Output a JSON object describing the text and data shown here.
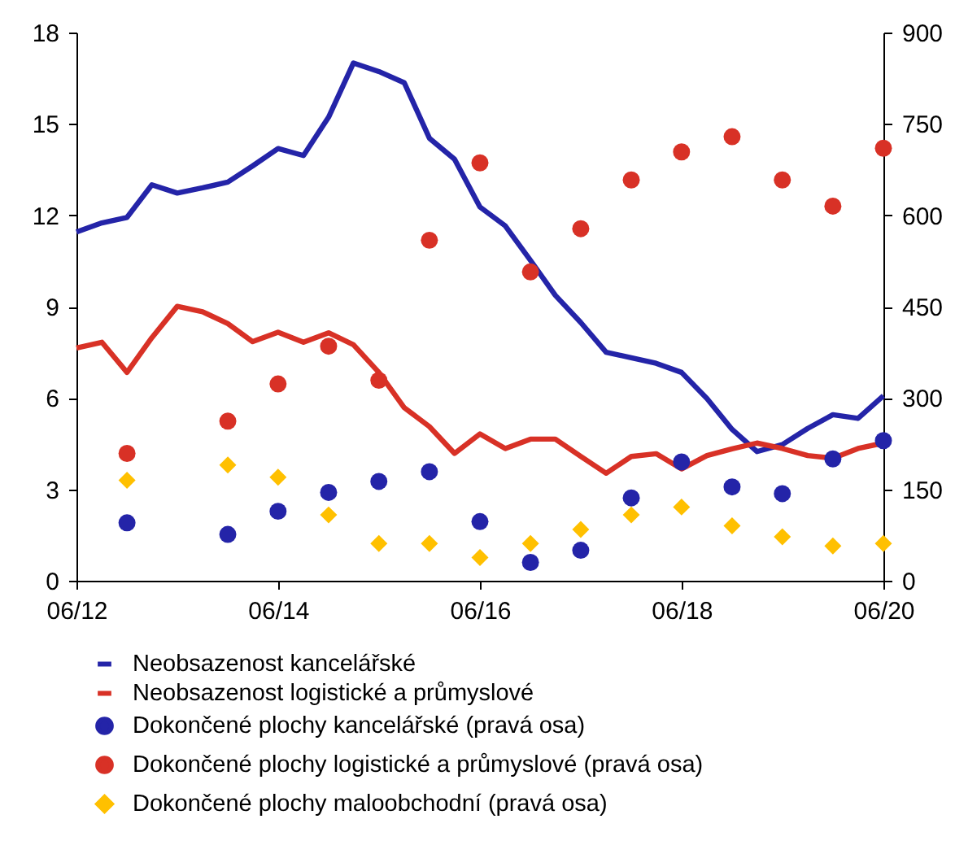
{
  "chart_data": {
    "type": "line",
    "xlim": [
      "2012-06",
      "2020-06"
    ],
    "xticks": [
      {
        "value": "2012-06",
        "label": "06/12"
      },
      {
        "value": "2014-06",
        "label": "06/14"
      },
      {
        "value": "2016-06",
        "label": "06/16"
      },
      {
        "value": "2018-06",
        "label": "06/18"
      },
      {
        "value": "2020-06",
        "label": "06/20"
      }
    ],
    "ylim": [
      0,
      18
    ],
    "yticks": [
      0,
      3,
      6,
      9,
      12,
      15,
      18
    ],
    "y2lim": [
      0,
      900
    ],
    "y2ticks": [
      0,
      150,
      300,
      450,
      600,
      750,
      900
    ],
    "grid": false,
    "legend": "bottom",
    "series": [
      {
        "name": "Neobsazenost kancelářské",
        "color": "#2424a8",
        "x": [
          "2012-06",
          "2012-09",
          "2012-12",
          "2013-03",
          "2013-06",
          "2013-09",
          "2013-12",
          "2014-03",
          "2014-06",
          "2014-09",
          "2014-12",
          "2015-03",
          "2015-06",
          "2015-09",
          "2015-12",
          "2016-03",
          "2016-06",
          "2016-09",
          "2016-12",
          "2017-03",
          "2017-06",
          "2017-09",
          "2017-12",
          "2018-03",
          "2018-06",
          "2018-09",
          "2018-12",
          "2019-03",
          "2019-06",
          "2019-09",
          "2019-12",
          "2020-03",
          "2020-06"
        ],
        "values": [
          11.45,
          11.75,
          11.93,
          13.0,
          12.73,
          12.9,
          13.09,
          13.62,
          14.19,
          13.96,
          15.22,
          17.0,
          16.72,
          16.35,
          14.53,
          13.84,
          12.27,
          11.65,
          10.52,
          9.37,
          8.48,
          7.5,
          7.32,
          7.14,
          6.84,
          5.98,
          4.97,
          4.24,
          4.47,
          5.0,
          5.45,
          5.33,
          6.07
        ]
      },
      {
        "name": "Neobsazenost logistické a průmyslové",
        "color": "#d83126",
        "x": [
          "2012-06",
          "2012-09",
          "2012-12",
          "2013-03",
          "2013-06",
          "2013-09",
          "2013-12",
          "2014-03",
          "2014-06",
          "2014-09",
          "2014-12",
          "2015-03",
          "2015-06",
          "2015-09",
          "2015-12",
          "2016-03",
          "2016-06",
          "2016-09",
          "2016-12",
          "2017-03",
          "2017-06",
          "2017-09",
          "2017-12",
          "2018-03",
          "2018-06",
          "2018-09",
          "2018-12",
          "2019-03",
          "2019-06",
          "2019-09",
          "2019-12",
          "2020-03",
          "2020-06"
        ],
        "values": [
          7.64,
          7.83,
          6.84,
          7.98,
          9.01,
          8.83,
          8.44,
          7.85,
          8.16,
          7.83,
          8.14,
          7.75,
          6.84,
          5.68,
          5.06,
          4.18,
          4.82,
          4.34,
          4.65,
          4.65,
          4.08,
          3.53,
          4.08,
          4.17,
          3.67,
          4.11,
          4.33,
          4.52,
          4.34,
          4.11,
          4.02,
          4.34,
          4.52
        ]
      },
      {
        "name": "Dokončené plochy kancelářské (pravá osa)",
        "type": "scatter",
        "axis": "y2",
        "marker": "circle",
        "color": "#2424a8",
        "x": [
          "2012-12",
          "2013-12",
          "2014-06",
          "2014-12",
          "2015-06",
          "2015-12",
          "2016-06",
          "2016-12",
          "2017-06",
          "2017-12",
          "2018-06",
          "2018-12",
          "2019-06",
          "2019-12",
          "2020-06"
        ],
        "values": [
          95,
          76,
          114,
          145,
          163,
          179,
          97,
          30,
          50,
          136,
          195,
          154,
          143,
          200,
          230
        ]
      },
      {
        "name": "Dokončené plochy logistické a průmyslové (pravá osa)",
        "type": "scatter",
        "axis": "y2",
        "marker": "circle",
        "color": "#d83126",
        "x": [
          "2012-12",
          "2013-12",
          "2014-06",
          "2014-12",
          "2015-06",
          "2015-12",
          "2016-06",
          "2016-12",
          "2017-06",
          "2017-12",
          "2018-06",
          "2018-12",
          "2019-06",
          "2019-12",
          "2020-06"
        ],
        "values": [
          209,
          262,
          323,
          385,
          329,
          559,
          686,
          507,
          578,
          658,
          704,
          729,
          658,
          615,
          710
        ]
      },
      {
        "name": "Dokončené plochy maloobchodní (pravá osa)",
        "type": "scatter",
        "axis": "y2",
        "marker": "diamond",
        "color": "#ffc000",
        "x": [
          "2012-12",
          "2013-12",
          "2014-06",
          "2014-12",
          "2015-06",
          "2015-12",
          "2016-06",
          "2016-12",
          "2017-06",
          "2017-12",
          "2018-06",
          "2018-12",
          "2019-06",
          "2019-12",
          "2020-06"
        ],
        "values": [
          165,
          190,
          170,
          108,
          61,
          61,
          38,
          61,
          84,
          108,
          121,
          90,
          72,
          57,
          61
        ]
      }
    ]
  }
}
